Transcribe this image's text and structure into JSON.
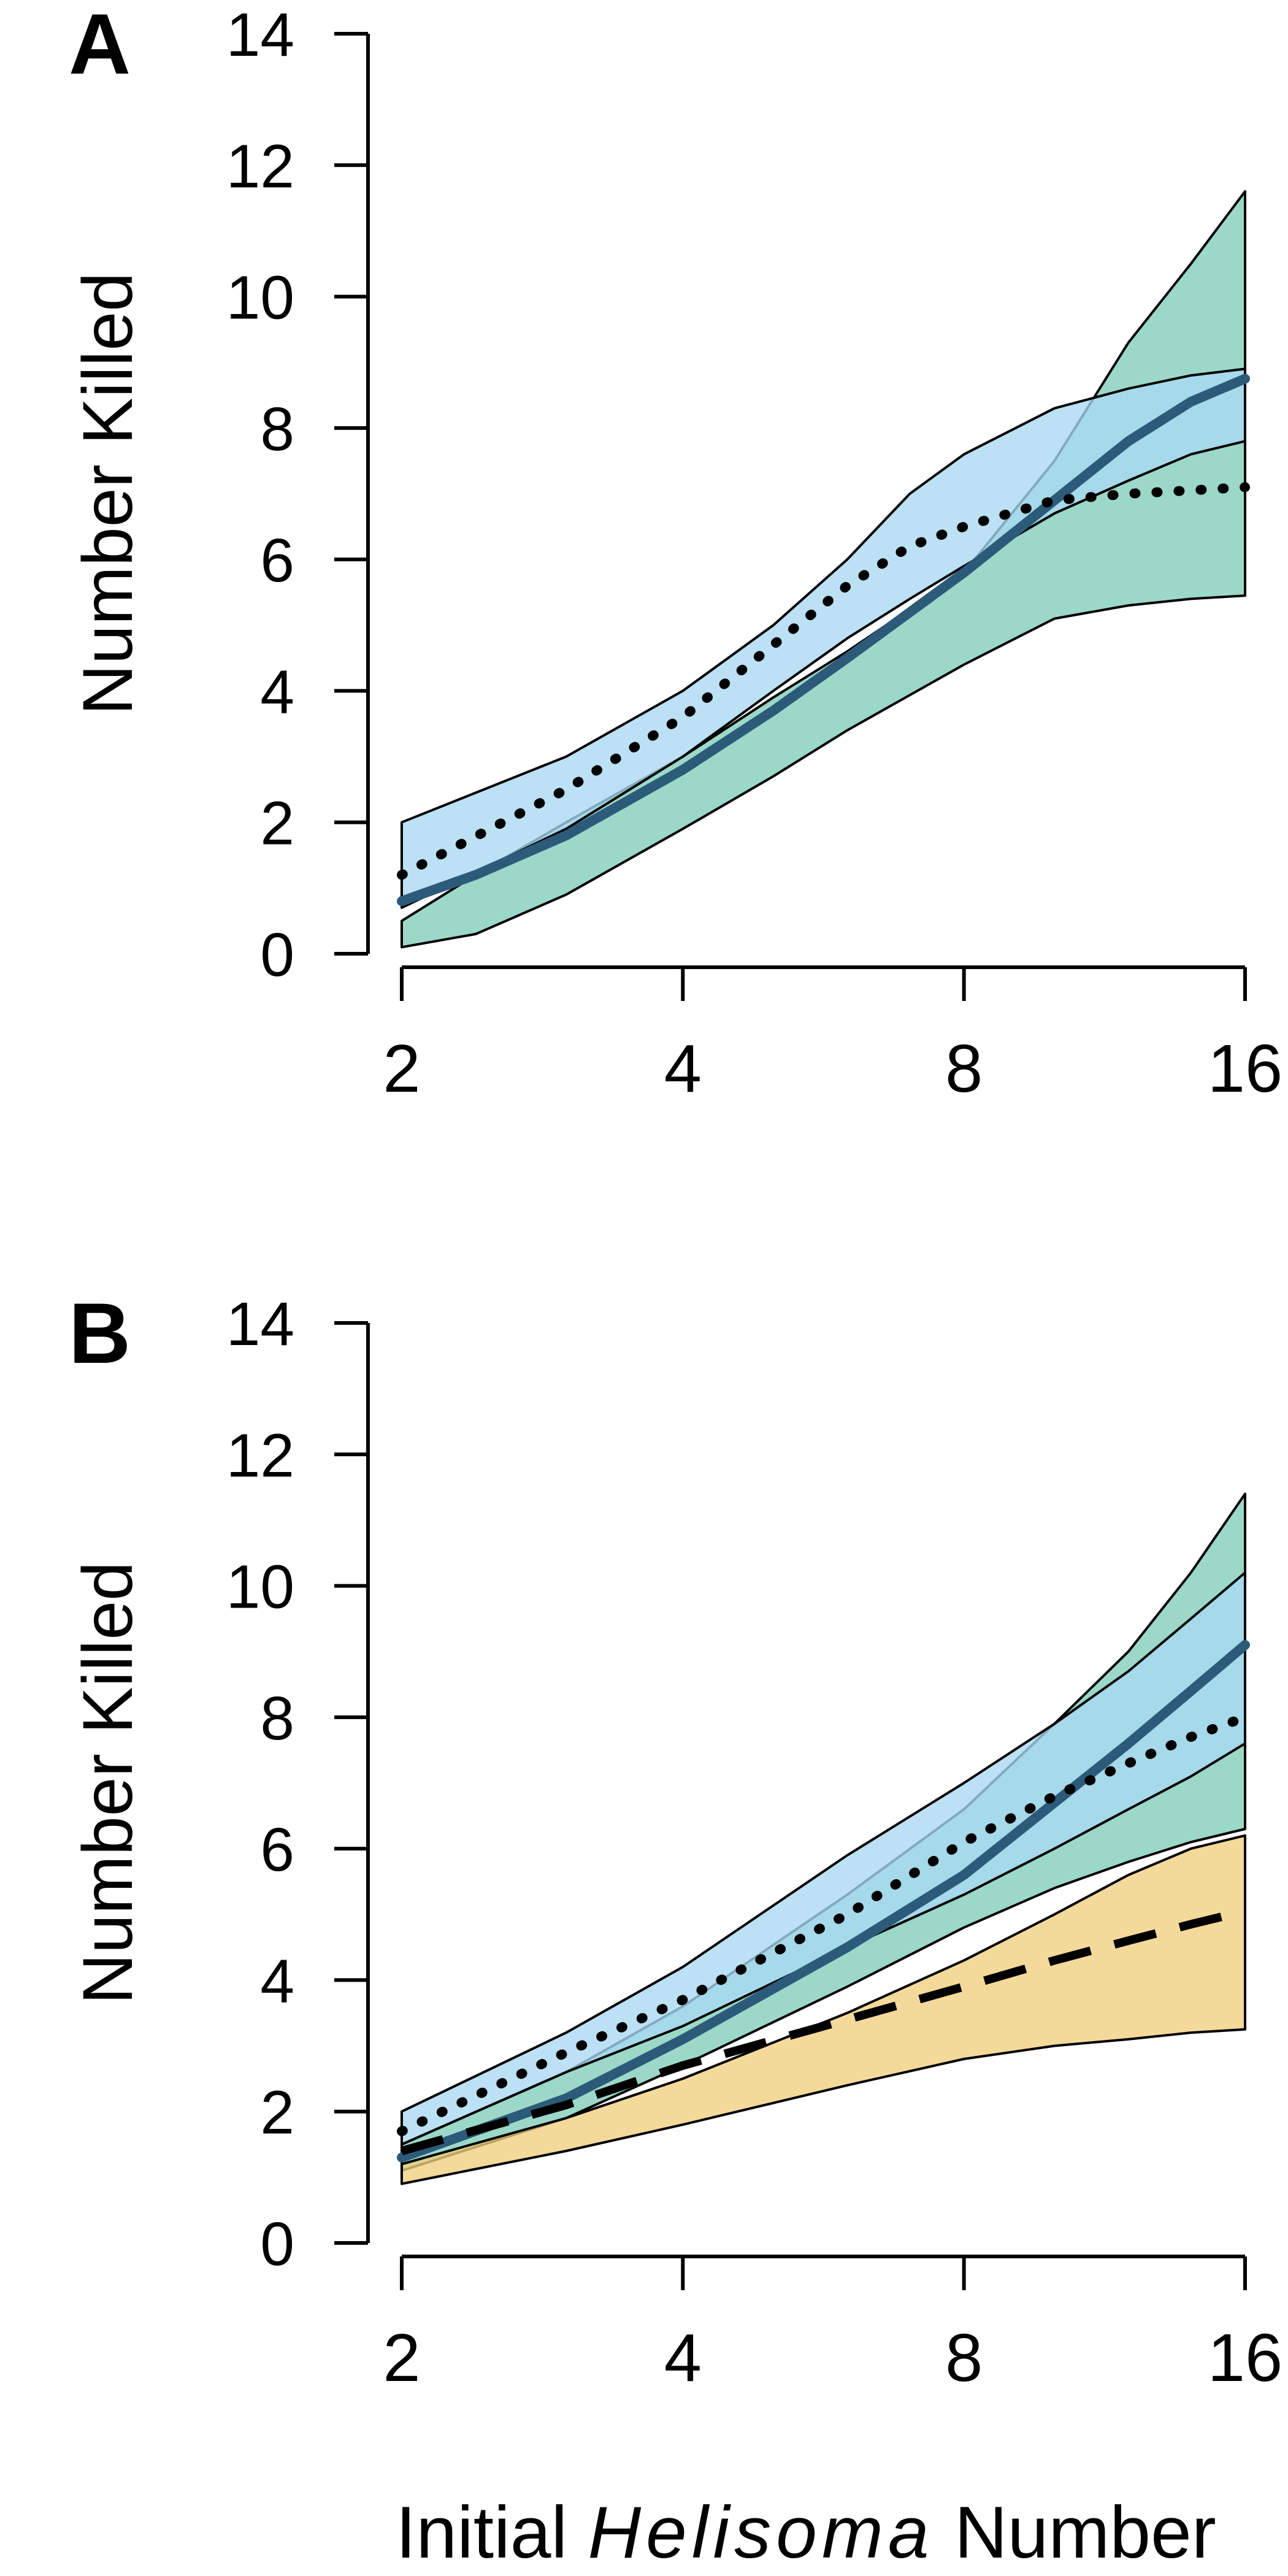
{
  "figure": {
    "xlabel_parts": [
      "Initial ",
      "Helisoma",
      " Number"
    ]
  },
  "chart_data": [
    {
      "type": "area",
      "panel_label": "A",
      "ylabel": "Number Killed",
      "xlabel": "Initial Helisoma Number",
      "x_scale": "log2",
      "x_ticks": [
        2,
        4,
        8,
        16
      ],
      "xlim": [
        2,
        16
      ],
      "ylim": [
        0,
        14
      ],
      "y_ticks": [
        0,
        2,
        4,
        6,
        8,
        10,
        12,
        14
      ],
      "grid": false,
      "colors": {
        "green": "#7fcdb8",
        "blue": "#a9d8f2",
        "overlap": "#63bcd0",
        "dark_line": "#2c5b7a"
      },
      "series": [
        {
          "fill": "green",
          "line_style": "solid",
          "x": [
            2,
            2.4,
            3,
            4,
            5,
            6,
            8,
            10,
            12,
            14,
            16
          ],
          "lower": [
            0.1,
            0.3,
            0.9,
            1.9,
            2.7,
            3.4,
            4.4,
            5.1,
            5.3,
            5.4,
            5.45
          ],
          "upper": [
            0.5,
            1.2,
            2.0,
            3.0,
            3.9,
            4.6,
            5.8,
            7.5,
            9.3,
            10.5,
            11.6
          ],
          "mean": [
            0.8,
            1.2,
            1.8,
            2.8,
            3.7,
            4.5,
            5.8,
            6.9,
            7.8,
            8.4,
            8.75
          ]
        },
        {
          "fill": "blue",
          "line_style": "dotted",
          "x": [
            2,
            3,
            4,
            5,
            6,
            7,
            8,
            10,
            12,
            14,
            16
          ],
          "lower": [
            0.7,
            1.9,
            3.0,
            4.0,
            4.8,
            5.4,
            5.9,
            6.7,
            7.2,
            7.6,
            7.8
          ],
          "upper": [
            2.0,
            3.0,
            4.0,
            5.0,
            6.0,
            7.0,
            7.6,
            8.3,
            8.6,
            8.8,
            8.9
          ],
          "mean": [
            1.2,
            2.5,
            3.6,
            4.7,
            5.6,
            6.2,
            6.5,
            6.9,
            7.0,
            7.05,
            7.1
          ]
        }
      ]
    },
    {
      "type": "area",
      "panel_label": "B",
      "ylabel": "Number Killed",
      "xlabel": "Initial Helisoma Number",
      "x_scale": "log2",
      "x_ticks": [
        2,
        4,
        8,
        16
      ],
      "xlim": [
        2,
        16
      ],
      "ylim": [
        0,
        14
      ],
      "y_ticks": [
        0,
        2,
        4,
        6,
        8,
        10,
        12,
        14
      ],
      "grid": false,
      "colors": {
        "green": "#7fcdb8",
        "blue": "#a9d8f2",
        "yellow": "#f1cf7e",
        "dark_line": "#2c5b7a"
      },
      "series": [
        {
          "fill": "green",
          "line_style": "solid",
          "x": [
            2,
            3,
            4,
            6,
            8,
            10,
            12,
            14,
            16
          ],
          "lower": [
            1.1,
            1.9,
            2.7,
            3.9,
            4.8,
            5.4,
            5.8,
            6.1,
            6.3
          ],
          "upper": [
            1.5,
            2.6,
            3.6,
            5.3,
            6.6,
            7.9,
            9.0,
            10.2,
            11.4
          ],
          "mean": [
            1.3,
            2.2,
            3.1,
            4.5,
            5.6,
            6.7,
            7.6,
            8.4,
            9.1
          ]
        },
        {
          "fill": "blue",
          "line_style": "dotted",
          "x": [
            2,
            3,
            4,
            6,
            8,
            10,
            12,
            14,
            16
          ],
          "lower": [
            1.5,
            2.6,
            3.3,
            4.5,
            5.3,
            6.0,
            6.6,
            7.1,
            7.6
          ],
          "upper": [
            2.0,
            3.2,
            4.2,
            5.9,
            7.0,
            7.9,
            8.7,
            9.5,
            10.2
          ],
          "mean": [
            1.7,
            2.9,
            3.7,
            5.0,
            6.1,
            6.8,
            7.3,
            7.7,
            8.0
          ]
        },
        {
          "fill": "yellow",
          "line_style": "dashed",
          "x": [
            2,
            3,
            4,
            6,
            8,
            10,
            12,
            14,
            16
          ],
          "lower": [
            0.9,
            1.4,
            1.8,
            2.4,
            2.8,
            3.0,
            3.1,
            3.2,
            3.25
          ],
          "upper": [
            1.2,
            1.9,
            2.5,
            3.5,
            4.3,
            5.0,
            5.6,
            6.0,
            6.2
          ],
          "mean": [
            1.4,
            2.1,
            2.7,
            3.4,
            3.9,
            4.3,
            4.6,
            4.85,
            5.05
          ]
        }
      ]
    }
  ]
}
